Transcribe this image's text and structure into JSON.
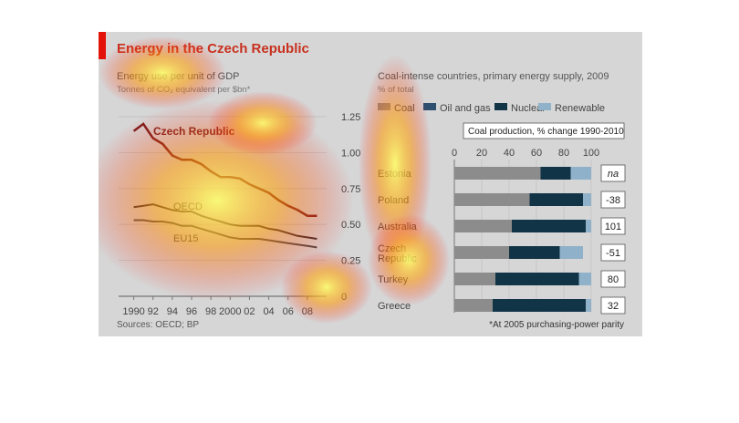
{
  "title": "Energy in the Czech Republic",
  "colors": {
    "brand_red": "#e3120b",
    "coal": "#8c8c8c",
    "oil_gas": "#2f4f6f",
    "nuclear": "#123447",
    "renewable": "#8fb1c9",
    "czech_line": "#7a1f1f",
    "oecd_line": "#3a2d2d",
    "eu_line": "#4a4a4a"
  },
  "left_chart": {
    "title": "Energy use per unit of GDP",
    "subtitle": "Tonnes of CO₂ equivalent per $bn*"
  },
  "right_chart": {
    "title": "Coal-intense countries, primary energy supply, 2009",
    "subtitle": "% of total",
    "coal_prod_header": "Coal production, % change 1990-2010"
  },
  "footer": {
    "source": "Sources: OECD; BP",
    "note": "*At 2005 purchasing-power parity"
  },
  "chart_data": [
    {
      "type": "line",
      "title": "Energy use per unit of GDP",
      "ylabel": "Tonnes of CO₂ equivalent per $bn*",
      "x_tick_labels": [
        "1990",
        "92",
        "94",
        "96",
        "98",
        "2000",
        "02",
        "04",
        "06",
        "08"
      ],
      "x_ticks": [
        1990,
        1992,
        1994,
        1996,
        1998,
        2000,
        2002,
        2004,
        2006,
        2008
      ],
      "xlim": [
        1989,
        2010
      ],
      "ylim": [
        0,
        1.25
      ],
      "yticks": [
        0,
        0.25,
        0.5,
        0.75,
        1.0,
        1.25
      ],
      "ytick_labels": [
        "0",
        "0.25",
        "0.50",
        "0.75",
        "1.00",
        "1.25"
      ],
      "x": [
        1990,
        1991,
        1992,
        1993,
        1994,
        1995,
        1996,
        1997,
        1998,
        1999,
        2000,
        2001,
        2002,
        2003,
        2004,
        2005,
        2006,
        2007,
        2008,
        2009
      ],
      "series": [
        {
          "name": "Czech Republic",
          "values": [
            1.15,
            1.2,
            1.1,
            1.06,
            0.98,
            0.95,
            0.95,
            0.92,
            0.87,
            0.83,
            0.83,
            0.82,
            0.78,
            0.75,
            0.72,
            0.67,
            0.63,
            0.6,
            0.56,
            0.56
          ]
        },
        {
          "name": "OECD",
          "values": [
            0.62,
            0.63,
            0.64,
            0.62,
            0.6,
            0.59,
            0.59,
            0.56,
            0.54,
            0.52,
            0.5,
            0.49,
            0.49,
            0.49,
            0.47,
            0.46,
            0.44,
            0.42,
            0.41,
            0.4
          ]
        },
        {
          "name": "EU15",
          "values": [
            0.53,
            0.53,
            0.52,
            0.52,
            0.51,
            0.49,
            0.49,
            0.47,
            0.45,
            0.43,
            0.41,
            0.4,
            0.4,
            0.4,
            0.39,
            0.38,
            0.37,
            0.36,
            0.35,
            0.34
          ]
        }
      ],
      "grid": true
    },
    {
      "type": "bar",
      "stacked": true,
      "orientation": "horizontal",
      "title": "Coal-intense countries, primary energy supply, 2009",
      "ylabel": "% of total",
      "xlim": [
        0,
        100
      ],
      "xticks": [
        0,
        20,
        40,
        60,
        80,
        100
      ],
      "categories": [
        "Estonia",
        "Poland",
        "Australia",
        "Czech Republic",
        "Turkey",
        "Greece"
      ],
      "series": [
        {
          "name": "Coal",
          "values": [
            63,
            55,
            42,
            40,
            30,
            28
          ]
        },
        {
          "name": "Oil and gas",
          "values": [
            0,
            0,
            0,
            0,
            0,
            0
          ]
        },
        {
          "name": "Nuclear",
          "values": [
            22,
            39,
            54,
            37,
            61,
            68
          ]
        },
        {
          "name": "Renewable",
          "values": [
            15,
            6,
            4,
            17,
            9,
            4
          ]
        }
      ],
      "coal_production_change": [
        "na",
        "-38",
        "101",
        "-51",
        "80",
        "32"
      ],
      "legend_position": "top"
    }
  ]
}
